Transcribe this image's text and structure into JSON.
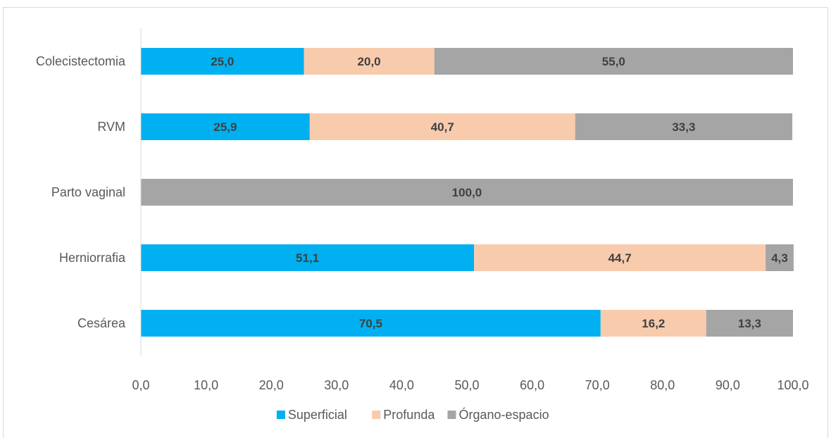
{
  "chart_data": {
    "type": "bar",
    "orientation": "horizontal",
    "stacked": true,
    "title": "",
    "xlabel": "",
    "ylabel": "",
    "categories": [
      "Colecistectomia",
      "RVM",
      "Parto vaginal",
      "Herniorrafia",
      "Cesárea"
    ],
    "series": [
      {
        "name": "Superficial",
        "color": "#00b0f0",
        "values": [
          25.0,
          25.9,
          0,
          51.1,
          70.5
        ],
        "labels": [
          "25,0",
          "25,9",
          "",
          "51,1",
          "70,5"
        ]
      },
      {
        "name": "Profunda",
        "color": "#f8cbad",
        "values": [
          20.0,
          40.7,
          0,
          44.7,
          16.2
        ],
        "labels": [
          "20,0",
          "40,7",
          "",
          "44,7",
          "16,2"
        ]
      },
      {
        "name": "Órgano-espacio",
        "color": "#a5a5a5",
        "values": [
          55.0,
          33.3,
          100.0,
          4.3,
          13.3
        ],
        "labels": [
          "55,0",
          "33,3",
          "100,0",
          "4,3",
          "13,3"
        ]
      }
    ],
    "xlim": [
      0,
      100
    ],
    "xticks": [
      0,
      10,
      20,
      30,
      40,
      50,
      60,
      70,
      80,
      90,
      100
    ],
    "xtick_labels": [
      "0,0",
      "10,0",
      "20,0",
      "30,0",
      "40,0",
      "50,0",
      "60,0",
      "70,0",
      "80,0",
      "90,0",
      "100,0"
    ],
    "grid": false,
    "legend_position": "bottom"
  }
}
